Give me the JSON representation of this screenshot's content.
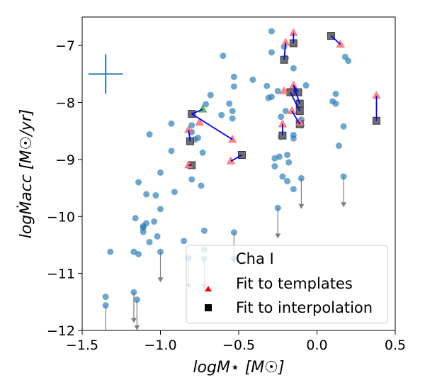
{
  "chart_data": {
    "type": "scatter",
    "xlabel": "logM⋆ [M☉]",
    "ylabel": "logṀacc [M☉/yr]",
    "xlim": [
      -1.5,
      0.5
    ],
    "ylim": [
      -12,
      -6.5
    ],
    "xticks": [
      -1.5,
      -1.0,
      -0.5,
      0.0,
      0.5
    ],
    "xtick_labels": [
      "−1.5",
      "−1.0",
      "−0.5",
      "0.0",
      "0.5"
    ],
    "yticks": [
      -12,
      -11,
      -10,
      -9,
      -8,
      -7
    ],
    "ytick_labels": [
      "−12",
      "−11",
      "−10",
      "−9",
      "−8",
      "−7"
    ],
    "legend": {
      "position": "lower-right",
      "entries": [
        "Cha I",
        "Fit to templates",
        "Fit to interpolation"
      ]
    },
    "error_cross": {
      "x": -1.35,
      "y": -7.5,
      "dx": 0.11,
      "dy": 0.35
    },
    "colors": {
      "cha": "#1f77b4",
      "templates": "#ff0000",
      "interpolation": "#000000",
      "connector": "#0000ff",
      "upper_limit": "#808080",
      "green": "#2ca02c"
    },
    "series": [
      {
        "name": "Cha I",
        "marker": "circle",
        "points": [
          [
            -0.29,
            -6.75
          ],
          [
            -0.29,
            -7.12
          ],
          [
            -0.6,
            -7.18
          ],
          [
            -0.21,
            -7.02
          ],
          [
            -0.2,
            -7.22
          ],
          [
            -0.15,
            -7.4
          ],
          [
            0.18,
            -7.2
          ],
          [
            0.2,
            -7.27
          ],
          [
            -0.53,
            -7.55
          ],
          [
            -0.53,
            -7.72
          ],
          [
            -0.41,
            -7.6
          ],
          [
            -0.32,
            -7.71
          ],
          [
            -0.31,
            -7.92
          ],
          [
            -0.29,
            -7.9
          ],
          [
            -0.25,
            -7.8
          ],
          [
            -0.07,
            -7.7
          ],
          [
            -0.16,
            -7.81
          ],
          [
            0.12,
            -7.85
          ],
          [
            0.1,
            -7.98
          ],
          [
            0.12,
            -8.02
          ],
          [
            -0.68,
            -7.87
          ],
          [
            -0.71,
            -8.03
          ],
          [
            -0.54,
            -8.15
          ],
          [
            -0.56,
            -8.02
          ],
          [
            -0.54,
            -8.28
          ],
          [
            -0.61,
            -8.22
          ],
          [
            -0.23,
            -8.25
          ],
          [
            -0.2,
            -8.15
          ],
          [
            -0.1,
            -8.3
          ],
          [
            -0.1,
            -8.4
          ],
          [
            0.17,
            -8.42
          ],
          [
            0.14,
            -8.76
          ],
          [
            -0.15,
            -8.57
          ],
          [
            -0.15,
            -8.63
          ],
          [
            -0.23,
            -8.6
          ],
          [
            -0.76,
            -8.62
          ],
          [
            -0.78,
            -8.65
          ],
          [
            -0.8,
            -8.4
          ],
          [
            -0.8,
            -8.52
          ],
          [
            -0.93,
            -8.37
          ],
          [
            -1.07,
            -8.56
          ],
          [
            -0.73,
            -8.88
          ],
          [
            -0.93,
            -8.85
          ],
          [
            -0.27,
            -8.98
          ],
          [
            -0.27,
            -9.12
          ],
          [
            -0.24,
            -8.95
          ],
          [
            -0.19,
            -8.92
          ],
          [
            -0.18,
            -9.05
          ],
          [
            -0.22,
            -9.3
          ],
          [
            -0.19,
            -9.38
          ],
          [
            -0.15,
            -9.52
          ],
          [
            -0.1,
            -9.33
          ],
          [
            0.17,
            -9.3
          ],
          [
            -1.0,
            -9.23
          ],
          [
            -0.8,
            -9.35
          ],
          [
            -0.74,
            -9.46
          ],
          [
            -1.14,
            -9.4
          ],
          [
            -0.91,
            -9.57
          ],
          [
            -1.09,
            -9.61
          ],
          [
            -1.03,
            -9.63
          ],
          [
            -1.0,
            -9.87
          ],
          [
            -0.25,
            -9.85
          ],
          [
            -1.16,
            -10.03
          ],
          [
            -1.04,
            -10.09
          ],
          [
            -1.09,
            -10.12
          ],
          [
            -1.11,
            -10.17
          ],
          [
            -1.11,
            -10.2
          ],
          [
            -1.11,
            -10.27
          ],
          [
            -1.02,
            -10.35
          ],
          [
            -1.07,
            -10.45
          ],
          [
            -0.85,
            -10.43
          ],
          [
            -0.72,
            -10.25
          ],
          [
            -0.53,
            -10.28
          ],
          [
            -1.17,
            -10.62
          ],
          [
            -1.14,
            -10.66
          ],
          [
            -1.0,
            -10.62
          ],
          [
            -0.82,
            -10.73
          ],
          [
            -0.72,
            -10.58
          ],
          [
            -0.72,
            -10.74
          ],
          [
            -0.53,
            -10.74
          ],
          [
            -1.32,
            -10.62
          ],
          [
            -1.35,
            -11.41
          ],
          [
            -1.35,
            -11.56
          ],
          [
            -1.17,
            -11.33
          ],
          [
            -1.15,
            -11.46
          ]
        ]
      },
      {
        "name": "Fit to templates",
        "marker": "triangle",
        "points": [
          [
            -0.15,
            -6.78
          ],
          [
            -0.2,
            -6.95
          ],
          [
            0.15,
            -6.98
          ],
          [
            -0.15,
            -7.7
          ],
          [
            -0.21,
            -7.8
          ],
          [
            0.38,
            -7.88
          ],
          [
            -0.16,
            -8.15
          ],
          [
            -0.22,
            -8.38
          ],
          [
            -0.11,
            -8.35
          ],
          [
            -0.75,
            -8.35
          ],
          [
            -0.82,
            -8.48
          ],
          [
            -0.82,
            -9.1
          ],
          [
            -0.54,
            -8.65
          ],
          [
            -0.55,
            -9.03
          ]
        ]
      },
      {
        "name": "Fit to interpolation",
        "marker": "square",
        "points": [
          [
            -0.21,
            -7.25
          ],
          [
            -0.15,
            -6.96
          ],
          [
            0.09,
            -6.83
          ],
          [
            -0.17,
            -7.82
          ],
          [
            -0.12,
            -7.82
          ],
          [
            -0.11,
            -8.02
          ],
          [
            -0.11,
            -8.15
          ],
          [
            -0.11,
            -8.38
          ],
          [
            -0.22,
            -8.58
          ],
          [
            0.38,
            -8.32
          ],
          [
            -0.8,
            -8.2
          ],
          [
            -0.81,
            -8.68
          ],
          [
            -0.8,
            -9.1
          ],
          [
            -0.48,
            -8.92
          ]
        ]
      }
    ],
    "green_point": [
      -0.73,
      -8.12
    ],
    "connectors": [
      [
        [
          -0.15,
          -6.78
        ],
        [
          -0.15,
          -6.96
        ]
      ],
      [
        [
          -0.2,
          -6.95
        ],
        [
          -0.21,
          -7.25
        ]
      ],
      [
        [
          0.09,
          -6.83
        ],
        [
          0.15,
          -6.98
        ]
      ],
      [
        [
          -0.15,
          -7.7
        ],
        [
          -0.12,
          -7.82
        ]
      ],
      [
        [
          -0.15,
          -7.7
        ],
        [
          -0.11,
          -8.02
        ]
      ],
      [
        [
          -0.17,
          -7.82
        ],
        [
          -0.11,
          -8.15
        ]
      ],
      [
        [
          -0.16,
          -8.15
        ],
        [
          -0.11,
          -8.38
        ]
      ],
      [
        [
          -0.22,
          -8.38
        ],
        [
          -0.22,
          -8.58
        ]
      ],
      [
        [
          -0.11,
          -8.35
        ],
        [
          -0.11,
          -8.38
        ]
      ],
      [
        [
          0.38,
          -8.32
        ],
        [
          0.38,
          -7.88
        ]
      ],
      [
        [
          -0.8,
          -8.2
        ],
        [
          -0.73,
          -8.12
        ]
      ],
      [
        [
          -0.8,
          -8.2
        ],
        [
          -0.54,
          -8.65
        ]
      ],
      [
        [
          -0.82,
          -8.48
        ],
        [
          -0.81,
          -8.68
        ]
      ],
      [
        [
          -0.82,
          -9.1
        ],
        [
          -0.8,
          -9.1
        ]
      ],
      [
        [
          -0.55,
          -9.03
        ],
        [
          -0.48,
          -8.92
        ]
      ]
    ],
    "upper_limits": [
      [
        -0.25,
        -9.85
      ],
      [
        -0.1,
        -9.33
      ],
      [
        0.17,
        -9.3
      ],
      [
        -1.0,
        -10.62
      ],
      [
        -1.35,
        -11.56
      ],
      [
        -1.17,
        -11.33
      ],
      [
        -1.15,
        -11.46
      ],
      [
        -0.82,
        -10.73
      ],
      [
        -0.72,
        -10.74
      ],
      [
        -0.53,
        -10.28
      ]
    ]
  }
}
